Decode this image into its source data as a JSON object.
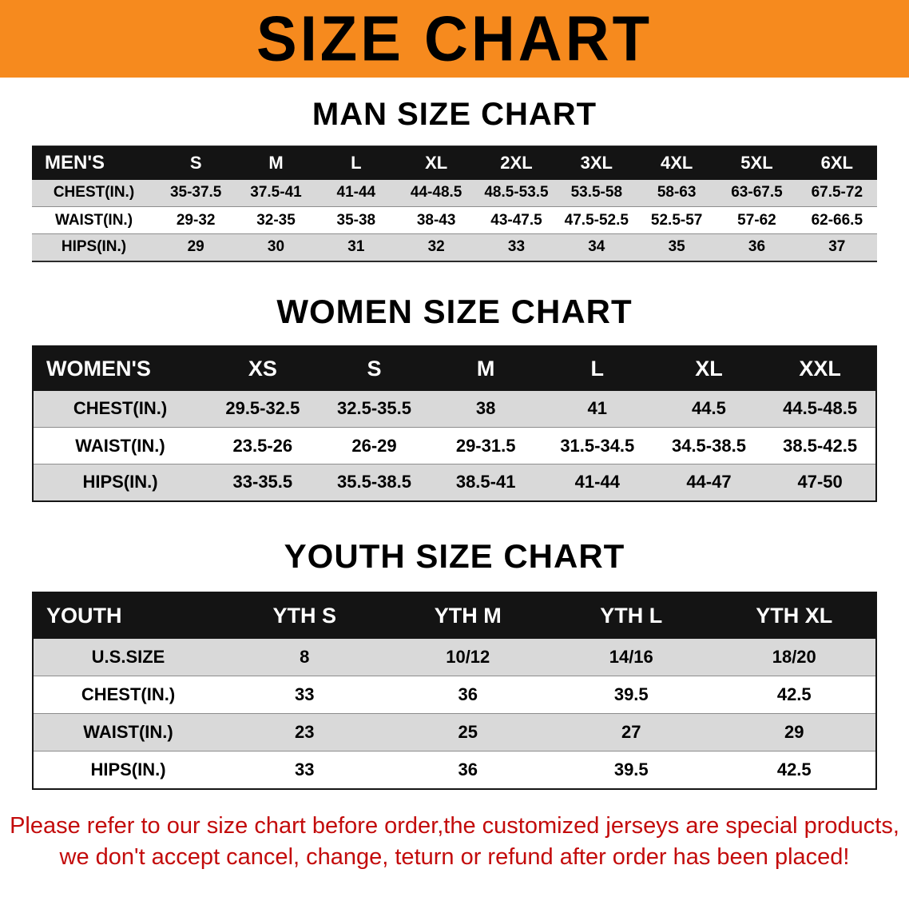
{
  "banner": {
    "title": "SIZE CHART"
  },
  "sections": [
    {
      "heading": "MAN SIZE CHART",
      "table": {
        "header": [
          "MEN'S",
          "S",
          "M",
          "L",
          "XL",
          "2XL",
          "3XL",
          "4XL",
          "5XL",
          "6XL"
        ],
        "rows": [
          [
            "CHEST(IN.)",
            "35-37.5",
            "37.5-41",
            "41-44",
            "44-48.5",
            "48.5-53.5",
            "53.5-58",
            "58-63",
            "63-67.5",
            "67.5-72"
          ],
          [
            "WAIST(IN.)",
            "29-32",
            "32-35",
            "35-38",
            "38-43",
            "43-47.5",
            "47.5-52.5",
            "52.5-57",
            "57-62",
            "62-66.5"
          ],
          [
            "HIPS(IN.)",
            "29",
            "30",
            "31",
            "32",
            "33",
            "34",
            "35",
            "36",
            "37"
          ]
        ]
      }
    },
    {
      "heading": "WOMEN SIZE CHART",
      "table": {
        "header": [
          "WOMEN'S",
          "XS",
          "S",
          "M",
          "L",
          "XL",
          "XXL"
        ],
        "rows": [
          [
            "CHEST(IN.)",
            "29.5-32.5",
            "32.5-35.5",
            "38",
            "41",
            "44.5",
            "44.5-48.5"
          ],
          [
            "WAIST(IN.)",
            "23.5-26",
            "26-29",
            "29-31.5",
            "31.5-34.5",
            "34.5-38.5",
            "38.5-42.5"
          ],
          [
            "HIPS(IN.)",
            "33-35.5",
            "35.5-38.5",
            "38.5-41",
            "41-44",
            "44-47",
            "47-50"
          ]
        ]
      }
    },
    {
      "heading": "YOUTH SIZE CHART",
      "table": {
        "header": [
          "YOUTH",
          "YTH S",
          "YTH M",
          "YTH L",
          "YTH XL"
        ],
        "rows": [
          [
            "U.S.SIZE",
            "8",
            "10/12",
            "14/16",
            "18/20"
          ],
          [
            "CHEST(IN.)",
            "33",
            "36",
            "39.5",
            "42.5"
          ],
          [
            "WAIST(IN.)",
            "23",
            "25",
            "27",
            "29"
          ],
          [
            "HIPS(IN.)",
            "33",
            "36",
            "39.5",
            "42.5"
          ]
        ]
      }
    }
  ],
  "disclaimer": {
    "line1": "Please refer to our size chart before order,the customized jerseys are special products,",
    "line2": "we don't accept cancel, change, teturn or refund after order has been placed!"
  },
  "colors": {
    "banner_orange": "#F68A1E",
    "header_black": "#141414",
    "row_gray": "#D9D9D9",
    "disclaimer_red": "#C30B0B",
    "text_black": "#121212"
  }
}
